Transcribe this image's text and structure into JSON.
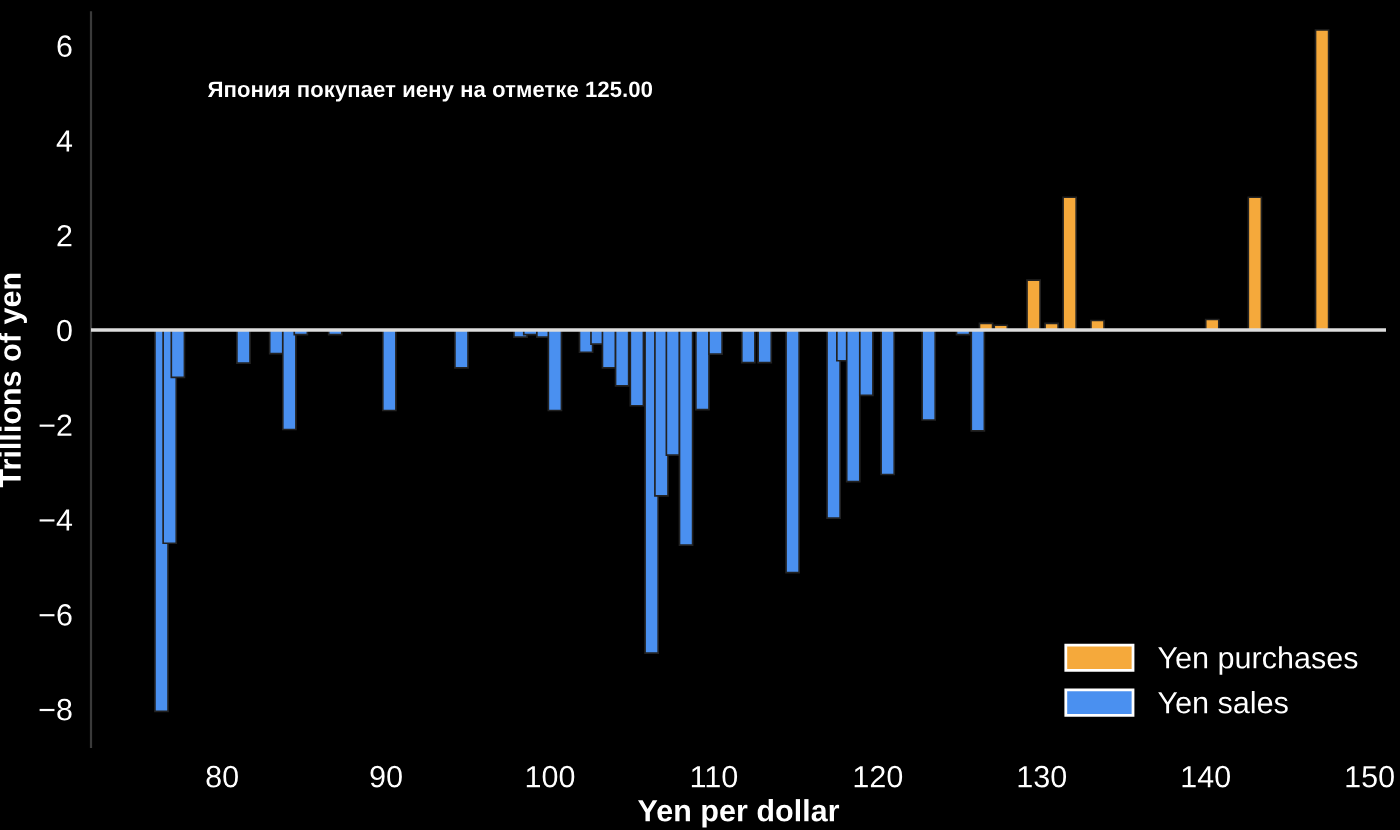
{
  "chart_data": {
    "type": "bar",
    "xlabel": "Yen per dollar",
    "ylabel": "Trillions of yen",
    "annotations": [
      "Япония покупает иену на отметке 125.00"
    ],
    "series": [
      {
        "name": "Yen purchases",
        "color": "#f5a93b",
        "x": [
          126.6,
          127.5,
          129.5,
          130.6,
          131.7,
          133.4,
          140.4,
          143.0,
          147.1
        ],
        "values": [
          0.14,
          0.1,
          1.05,
          0.14,
          2.8,
          0.2,
          0.22,
          2.8,
          6.33
        ]
      },
      {
        "name": "Yen sales",
        "color": "#4a90f0",
        "x": [
          76.3,
          76.8,
          77.3,
          81.3,
          83.3,
          84.1,
          84.8,
          86.9,
          90.2,
          94.6,
          98.2,
          98.8,
          99.6,
          100.3,
          102.2,
          102.9,
          103.6,
          104.4,
          105.3,
          106.2,
          106.8,
          107.5,
          108.3,
          109.3,
          110.1,
          112.1,
          113.1,
          114.8,
          117.3,
          117.9,
          118.5,
          119.3,
          120.6,
          123.1,
          125.2,
          126.1
        ],
        "values": [
          -8.05,
          -4.5,
          -1.0,
          -0.7,
          -0.5,
          -2.1,
          -0.1,
          -0.1,
          -1.7,
          -0.8,
          -0.15,
          -0.1,
          -0.15,
          -1.7,
          -0.47,
          -0.3,
          -0.8,
          -1.18,
          -1.6,
          -6.82,
          -3.5,
          -2.64,
          -4.54,
          -1.68,
          -0.51,
          -0.69,
          -0.69,
          -5.12,
          -3.97,
          -0.65,
          -3.2,
          -1.38,
          -3.05,
          -1.9,
          -0.1,
          -2.13
        ]
      }
    ],
    "xlim": [
      72,
      151
    ],
    "xticks": [
      80,
      90,
      100,
      110,
      120,
      130,
      140,
      150
    ],
    "ylim": [
      -8.8,
      6.7
    ],
    "yticks": [
      {
        "value": -8,
        "label": "−8"
      },
      {
        "value": -6,
        "label": "−6"
      },
      {
        "value": -4,
        "label": "−4"
      },
      {
        "value": -2,
        "label": "−2"
      },
      0,
      2,
      4,
      6
    ],
    "ref_lines": [
      {
        "axis": "y",
        "value": 0,
        "color": "#dddddd"
      }
    ],
    "grid": false,
    "legend": "bottom right"
  }
}
